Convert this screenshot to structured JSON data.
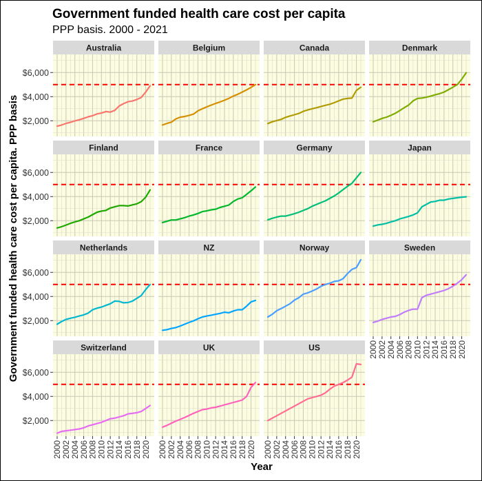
{
  "chart_data": {
    "type": "line",
    "title": "Government funded health care cost per capita",
    "subtitle": "PPP basis. 2000 - 2021",
    "xlabel": "Year",
    "ylabel": "Government funded health care cost per capita. PPP basis",
    "xlim": [
      2000,
      2021
    ],
    "ylim": [
      700,
      7500
    ],
    "x_ticks": [
      "2000",
      "2002",
      "2004",
      "2006",
      "2008",
      "2010",
      "2012",
      "2014",
      "2016",
      "2018",
      "2020"
    ],
    "y_ticks": [
      "$2,000",
      "$4,000",
      "$6,000"
    ],
    "y_tick_values": [
      2000,
      4000,
      6000
    ],
    "reference_line": {
      "value": 5000,
      "color": "#ff0000",
      "style": "dashed"
    },
    "grid": true,
    "panel_background": "#fcfce0",
    "strip_background": "#d9d9d9",
    "years": [
      2000,
      2001,
      2002,
      2003,
      2004,
      2005,
      2006,
      2007,
      2008,
      2009,
      2010,
      2011,
      2012,
      2013,
      2014,
      2015,
      2016,
      2017,
      2018,
      2019,
      2020,
      2021
    ],
    "panels": [
      {
        "name": "Australia",
        "color": "#f8766d",
        "values": [
          1550,
          1650,
          1780,
          1870,
          1990,
          2080,
          2200,
          2330,
          2420,
          2570,
          2640,
          2760,
          2720,
          2860,
          3220,
          3420,
          3580,
          3640,
          3760,
          3930,
          4380,
          4900
        ]
      },
      {
        "name": "Belgium",
        "color": "#d58f00",
        "values": [
          1650,
          1780,
          1880,
          2150,
          2300,
          2350,
          2450,
          2550,
          2820,
          3000,
          3150,
          3300,
          3440,
          3560,
          3700,
          3860,
          4050,
          4200,
          4380,
          4560,
          4770,
          5000
        ]
      },
      {
        "name": "Canada",
        "color": "#b09c00",
        "values": [
          1770,
          1920,
          2020,
          2120,
          2280,
          2400,
          2500,
          2610,
          2780,
          2900,
          3000,
          3080,
          3180,
          3280,
          3370,
          3500,
          3650,
          3800,
          3850,
          3880,
          4520,
          4780
        ]
      },
      {
        "name": "Denmark",
        "color": "#7eac00",
        "values": [
          1920,
          2050,
          2200,
          2300,
          2450,
          2620,
          2850,
          3080,
          3300,
          3650,
          3850,
          3880,
          3950,
          4050,
          4150,
          4250,
          4380,
          4580,
          4780,
          5000,
          5450,
          5980
        ]
      },
      {
        "name": "Finland",
        "color": "#1ea800",
        "values": [
          1400,
          1500,
          1640,
          1780,
          1900,
          2000,
          2150,
          2300,
          2500,
          2700,
          2800,
          2850,
          3050,
          3150,
          3250,
          3250,
          3220,
          3310,
          3400,
          3580,
          3950,
          4550
        ]
      },
      {
        "name": "France",
        "color": "#00b82a",
        "values": [
          1850,
          1950,
          2060,
          2060,
          2150,
          2250,
          2380,
          2480,
          2600,
          2750,
          2820,
          2900,
          2950,
          3100,
          3200,
          3300,
          3600,
          3800,
          3900,
          4180,
          4480,
          4800
        ]
      },
      {
        "name": "Germany",
        "color": "#00bf76",
        "values": [
          2080,
          2200,
          2300,
          2380,
          2380,
          2480,
          2580,
          2700,
          2850,
          3000,
          3200,
          3350,
          3500,
          3650,
          3850,
          4050,
          4300,
          4580,
          4850,
          5100,
          5550,
          6000
        ]
      },
      {
        "name": "Japan",
        "color": "#00bfa5",
        "values": [
          1550,
          1650,
          1700,
          1780,
          1900,
          2000,
          2150,
          2250,
          2350,
          2480,
          2650,
          3150,
          3350,
          3550,
          3600,
          3700,
          3700,
          3800,
          3850,
          3900,
          3950,
          3980
        ]
      },
      {
        "name": "Netherlands",
        "color": "#00b8cf",
        "values": [
          1700,
          1920,
          2100,
          2200,
          2280,
          2380,
          2480,
          2620,
          2900,
          3030,
          3120,
          3260,
          3400,
          3620,
          3600,
          3480,
          3500,
          3620,
          3850,
          4080,
          4580,
          5000
        ]
      },
      {
        "name": "NZ",
        "color": "#00a5ff",
        "values": [
          1200,
          1250,
          1350,
          1420,
          1550,
          1700,
          1850,
          1980,
          2150,
          2300,
          2380,
          2450,
          2520,
          2600,
          2700,
          2650,
          2800,
          2900,
          2900,
          3200,
          3550,
          3680
        ]
      },
      {
        "name": "Norway",
        "color": "#4a9eff",
        "values": [
          2300,
          2520,
          2820,
          3000,
          3200,
          3400,
          3700,
          3900,
          4200,
          4300,
          4450,
          4620,
          4850,
          5000,
          5100,
          5250,
          5300,
          5480,
          5900,
          6250,
          6400,
          7050
        ]
      },
      {
        "name": "Sweden",
        "color": "#c07cf9",
        "values": [
          1850,
          1950,
          2100,
          2200,
          2300,
          2350,
          2500,
          2700,
          2850,
          2950,
          2950,
          3900,
          4100,
          4200,
          4300,
          4400,
          4500,
          4650,
          4850,
          5100,
          5400,
          5800
        ]
      },
      {
        "name": "Switzerland",
        "color": "#e76bf3",
        "values": [
          950,
          1100,
          1150,
          1200,
          1250,
          1300,
          1400,
          1550,
          1650,
          1750,
          1850,
          2000,
          2150,
          2200,
          2300,
          2400,
          2550,
          2600,
          2650,
          2750,
          3000,
          3250
        ]
      },
      {
        "name": "UK",
        "color": "#ff62bc",
        "values": [
          1450,
          1600,
          1780,
          1950,
          2100,
          2250,
          2420,
          2600,
          2750,
          2900,
          2950,
          3050,
          3100,
          3200,
          3300,
          3400,
          3500,
          3600,
          3700,
          4000,
          4750,
          5150
        ]
      },
      {
        "name": "US",
        "color": "#ff6c91",
        "values": [
          2000,
          2200,
          2400,
          2600,
          2800,
          3000,
          3200,
          3400,
          3600,
          3800,
          3900,
          4000,
          4100,
          4300,
          4600,
          4850,
          5000,
          5150,
          5350,
          5600,
          6700,
          6650
        ]
      }
    ]
  }
}
